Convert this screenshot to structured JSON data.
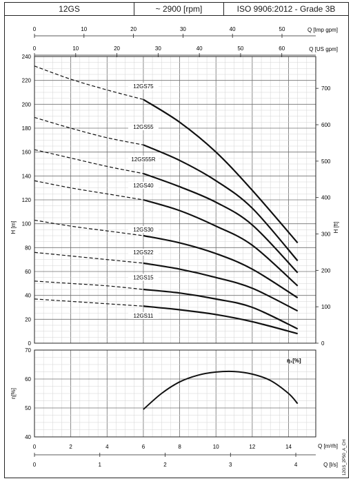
{
  "header": {
    "model": "12GS",
    "speed": "~ 2900 [rpm]",
    "standard": "ISO 9906:2012 - Grade 3B"
  },
  "side_code": "12GS_2P50_A_CH",
  "colors": {
    "line": "#111111",
    "grid_major": "#6f6f6f",
    "grid_minor": "#d3d3d3"
  },
  "chart_data": [
    {
      "type": "line",
      "title": "",
      "xlabel_imp": "Q [Imp gpm]",
      "xlabel_us": "Q [US gpm]",
      "ylabel": "H [m]",
      "ylabel_right": "H [ft]",
      "xlim": [
        0,
        15.5
      ],
      "ylim": [
        0,
        240
      ],
      "x_ticks_imp": [
        "0",
        "10",
        "20",
        "30",
        "40",
        "50"
      ],
      "x_ticks_imp_values": [
        0,
        10,
        20,
        30,
        40,
        50
      ],
      "x_ticks_us": [
        "0",
        "10",
        "20",
        "30",
        "40",
        "50",
        "60"
      ],
      "x_ticks_us_values": [
        0,
        10,
        20,
        30,
        40,
        50,
        60
      ],
      "y_ticks": [
        "0",
        "20",
        "40",
        "60",
        "80",
        "100",
        "120",
        "140",
        "160",
        "180",
        "200",
        "220",
        "240"
      ],
      "y_ticks_right": [
        "0",
        "100",
        "200",
        "300",
        "400",
        "500",
        "600",
        "700"
      ],
      "y_ticks_right_values": [
        0,
        100,
        200,
        300,
        400,
        500,
        600,
        700
      ],
      "grid": true,
      "series": [
        {
          "name": "12GS75",
          "label_at": [
            6.0,
            214
          ],
          "x": [
            0,
            2,
            4,
            6,
            8,
            10,
            12,
            14.5
          ],
          "y": [
            232,
            221,
            212,
            204,
            185,
            160,
            128,
            84
          ],
          "dashed_until": 6
        },
        {
          "name": "12GS55",
          "label_at": [
            6.0,
            180
          ],
          "x": [
            0,
            2,
            4,
            6,
            8,
            10,
            12,
            14.5
          ],
          "y": [
            189,
            180,
            172,
            166,
            153,
            136,
            113,
            69
          ],
          "dashed_until": 6
        },
        {
          "name": "12GS55R",
          "label_at": [
            6.0,
            153
          ],
          "x": [
            0,
            2,
            4,
            6,
            8,
            10,
            12,
            14.5
          ],
          "y": [
            162,
            155,
            148,
            142,
            131,
            118,
            99,
            59
          ],
          "dashed_until": 6
        },
        {
          "name": "12GS40",
          "label_at": [
            6.0,
            131
          ],
          "x": [
            0,
            2,
            4,
            6,
            8,
            10,
            12,
            14.5
          ],
          "y": [
            136,
            130,
            125,
            120,
            111,
            98,
            82,
            48
          ],
          "dashed_until": 6
        },
        {
          "name": "12GS30",
          "label_at": [
            6.0,
            94
          ],
          "x": [
            0,
            2,
            4,
            6,
            8,
            10,
            12,
            14.5
          ],
          "y": [
            103,
            98,
            94,
            90,
            84,
            75,
            62,
            38
          ],
          "dashed_until": 6
        },
        {
          "name": "12GS22",
          "label_at": [
            6.0,
            75
          ],
          "x": [
            0,
            2,
            4,
            6,
            8,
            10,
            12,
            14.5
          ],
          "y": [
            76,
            73,
            70,
            67,
            62,
            55,
            46,
            27
          ],
          "dashed_until": 6
        },
        {
          "name": "12GS15",
          "label_at": [
            6.0,
            54
          ],
          "x": [
            0,
            2,
            4,
            6,
            8,
            10,
            12,
            14.5
          ],
          "y": [
            52,
            50,
            48,
            45,
            42,
            37,
            30,
            12
          ],
          "dashed_until": 6
        },
        {
          "name": "12GS11",
          "label_at": [
            6.0,
            22
          ],
          "x": [
            0,
            2,
            4,
            6,
            8,
            10,
            12,
            14.5
          ],
          "y": [
            37,
            35,
            33,
            31,
            28,
            24,
            18,
            8
          ],
          "dashed_until": 6
        }
      ]
    },
    {
      "type": "line",
      "title": "",
      "legend_label": "η₁[%]",
      "ylabel": "η[%]",
      "xlabel_m3h": "Q [m³/h]",
      "xlabel_ls": "Q [l/s]",
      "xlim": [
        0,
        15.5
      ],
      "ylim": [
        40,
        70
      ],
      "y_ticks": [
        "40",
        "50",
        "60",
        "70"
      ],
      "x_ticks_m3h": [
        "0",
        "2",
        "4",
        "6",
        "8",
        "10",
        "12",
        "14"
      ],
      "x_ticks_m3h_values": [
        0,
        2,
        4,
        6,
        8,
        10,
        12,
        14
      ],
      "x_ticks_ls": [
        "0",
        "1",
        "2",
        "3",
        "4"
      ],
      "x_ticks_ls_values": [
        0,
        1,
        2,
        3,
        4
      ],
      "grid": true,
      "series": [
        {
          "name": "efficiency",
          "x": [
            6,
            7,
            8,
            9,
            10,
            11,
            12,
            13,
            14,
            14.5
          ],
          "y": [
            49.5,
            55,
            59,
            61.3,
            62.4,
            62.6,
            61.7,
            59.5,
            55,
            51.5
          ]
        }
      ]
    }
  ]
}
